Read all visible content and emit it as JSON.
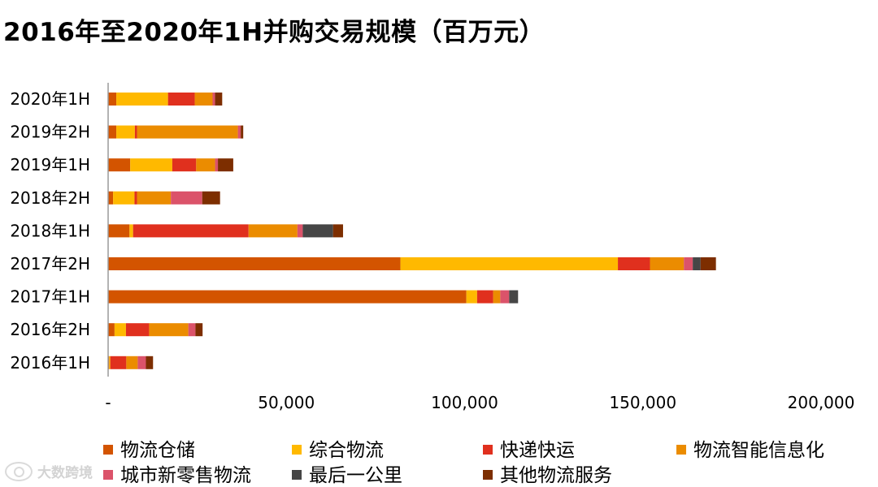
{
  "title": "2016年至2020年1H并购交易规模（百万元）",
  "watermark": "大数跨境",
  "chart_data": {
    "type": "bar",
    "orientation": "horizontal",
    "stacked": true,
    "title": "2016年至2020年1H并购交易规模（百万元）",
    "categories": [
      "2020年1H",
      "2019年2H",
      "2019年1H",
      "2018年2H",
      "2018年1H",
      "2017年2H",
      "2017年1H",
      "2016年2H",
      "2016年1H"
    ],
    "xlim": [
      0,
      200000
    ],
    "xticks": [
      0,
      50000,
      100000,
      150000,
      200000
    ],
    "xtick_labels": [
      "-",
      "50,000",
      "100,000",
      "150,000",
      "200,000"
    ],
    "grid": false,
    "legend_position": "bottom",
    "series": [
      {
        "name": "物流仓储",
        "color": "#D35400",
        "values": [
          2300,
          2300,
          6200,
          1400,
          6000,
          82000,
          100500,
          1800,
          300
        ]
      },
      {
        "name": "综合物流",
        "color": "#FFB900",
        "values": [
          14500,
          5200,
          11800,
          6000,
          1000,
          61000,
          3000,
          3200,
          300
        ]
      },
      {
        "name": "快递快运",
        "color": "#E0301E",
        "values": [
          7500,
          600,
          6700,
          700,
          32400,
          9000,
          4500,
          6500,
          4500
        ]
      },
      {
        "name": "物流智能信息化",
        "color": "#EB8C00",
        "values": [
          5000,
          28300,
          5300,
          9500,
          13700,
          9500,
          2000,
          11000,
          3200
        ]
      },
      {
        "name": "城市新零售物流",
        "color": "#DB536A",
        "values": [
          700,
          800,
          800,
          8800,
          1500,
          2500,
          2500,
          2000,
          2300
        ]
      },
      {
        "name": "最后一公里",
        "color": "#464646",
        "values": [
          0,
          0,
          0,
          0,
          8500,
          2200,
          2500,
          0,
          0
        ]
      },
      {
        "name": "其他物流服务",
        "color": "#7D2E00",
        "values": [
          2000,
          700,
          4300,
          5000,
          2800,
          4300,
          0,
          2000,
          2000
        ]
      }
    ]
  }
}
